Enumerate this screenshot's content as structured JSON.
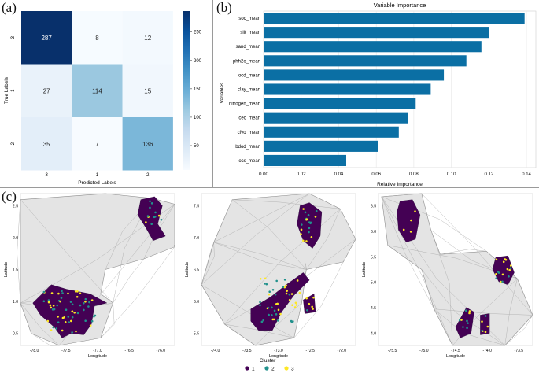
{
  "panels": {
    "a": "(a)",
    "b": "(b)",
    "c": "(c)"
  },
  "chart_data": [
    {
      "type": "heatmap",
      "xlabel": "Predicted Labels",
      "ylabel": "True Labels",
      "x_categories": [
        "3",
        "1",
        "2"
      ],
      "y_categories": [
        "3",
        "1",
        "2"
      ],
      "matrix": [
        [
          287,
          8,
          12
        ],
        [
          27,
          114,
          15
        ],
        [
          35,
          7,
          136
        ]
      ],
      "colorbar": {
        "ticks": [
          50,
          100,
          150,
          200,
          250
        ],
        "range": [
          7,
          287
        ]
      }
    },
    {
      "type": "bar",
      "orientation": "horizontal",
      "title": "Variable Importance",
      "xlabel": "Relative Importance",
      "ylabel": "Variables",
      "categories": [
        "soc_mean",
        "silt_mean",
        "sand_mean",
        "phh2o_mean",
        "ocd_mean",
        "clay_mean",
        "nitrogen_mean",
        "cec_mean",
        "cfvo_mean",
        "bdod_mean",
        "ocs_mean"
      ],
      "values": [
        0.139,
        0.12,
        0.116,
        0.108,
        0.096,
        0.089,
        0.081,
        0.077,
        0.072,
        0.061,
        0.044
      ],
      "xticks": [
        "0.00",
        "0.02",
        "0.04",
        "0.06",
        "0.08",
        "0.10",
        "0.12",
        "0.14"
      ],
      "xlim": [
        0,
        0.145
      ],
      "bar_color": "#0b6fa4"
    },
    {
      "type": "scatter",
      "xlabel": "Longitude",
      "ylabel": "Latitude",
      "xticks": [
        "-78.0",
        "-77.5",
        "-77.0",
        "-76.5",
        "-76.0"
      ],
      "yticks": [
        "0.5",
        "1.0",
        "1.5",
        "2.0",
        "2.5"
      ]
    },
    {
      "type": "scatter",
      "xlabel": "Longitude",
      "ylabel": "Latitude",
      "xticks": [
        "-74.0",
        "-73.5",
        "-73.0",
        "-72.5",
        "-72.0"
      ],
      "yticks": [
        "5.5",
        "6.0",
        "6.5",
        "7.0",
        "7.5"
      ]
    },
    {
      "type": "scatter",
      "xlabel": "Longitude",
      "ylabel": "Latitude",
      "xticks": [
        "-75.5",
        "-75.0",
        "-74.5",
        "-74.0",
        "-73.5"
      ],
      "yticks": [
        "4.0",
        "4.5",
        "5.0",
        "5.5",
        "6.0",
        "6.5"
      ]
    }
  ],
  "legend": {
    "title": "Cluster",
    "items": [
      {
        "label": "1",
        "color": "#440154"
      },
      {
        "label": "2",
        "color": "#21918c"
      },
      {
        "label": "3",
        "color": "#fde725"
      }
    ]
  },
  "colors": {
    "map_fill": "#e4e4e4",
    "map_stroke": "#8c8c8c",
    "bar": "#0b6fa4"
  }
}
